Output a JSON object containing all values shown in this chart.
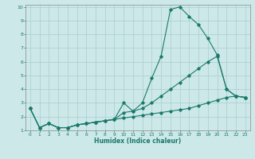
{
  "xlabel": "Humidex (Indice chaleur)",
  "background_color": "#cce8e8",
  "grid_color": "#aacece",
  "line_color": "#1a7a6a",
  "xlim": [
    -0.5,
    23.5
  ],
  "ylim": [
    1,
    10
  ],
  "xticks": [
    0,
    1,
    2,
    3,
    4,
    5,
    6,
    7,
    8,
    9,
    10,
    11,
    12,
    13,
    14,
    15,
    16,
    17,
    18,
    19,
    20,
    21,
    22,
    23
  ],
  "yticks": [
    1,
    2,
    3,
    4,
    5,
    6,
    7,
    8,
    9,
    10
  ],
  "series": [
    {
      "x": [
        0,
        1,
        2,
        3,
        4,
        5,
        6,
        7,
        8,
        9,
        10,
        11,
        12,
        13,
        14,
        15,
        16,
        17,
        18,
        19,
        20,
        21,
        22,
        23
      ],
      "y": [
        2.6,
        1.2,
        1.5,
        1.2,
        1.2,
        1.4,
        1.5,
        1.6,
        1.7,
        1.8,
        3.0,
        2.4,
        3.0,
        4.8,
        6.4,
        9.8,
        10.0,
        9.3,
        8.7,
        7.7,
        6.5,
        4.0,
        3.5,
        3.4
      ]
    },
    {
      "x": [
        0,
        1,
        2,
        3,
        4,
        5,
        6,
        7,
        8,
        9,
        10,
        11,
        12,
        13,
        14,
        15,
        16,
        17,
        18,
        19,
        20,
        21,
        22,
        23
      ],
      "y": [
        2.6,
        1.2,
        1.5,
        1.2,
        1.2,
        1.4,
        1.5,
        1.6,
        1.7,
        1.8,
        2.3,
        2.4,
        2.6,
        3.0,
        3.5,
        4.0,
        4.5,
        5.0,
        5.5,
        6.0,
        6.4,
        4.0,
        3.5,
        3.4
      ]
    },
    {
      "x": [
        0,
        1,
        2,
        3,
        4,
        5,
        6,
        7,
        8,
        9,
        10,
        11,
        12,
        13,
        14,
        15,
        16,
        17,
        18,
        19,
        20,
        21,
        22,
        23
      ],
      "y": [
        2.6,
        1.2,
        1.5,
        1.2,
        1.2,
        1.4,
        1.5,
        1.6,
        1.7,
        1.8,
        1.9,
        2.0,
        2.1,
        2.2,
        2.3,
        2.4,
        2.5,
        2.6,
        2.8,
        3.0,
        3.2,
        3.4,
        3.5,
        3.4
      ]
    }
  ]
}
